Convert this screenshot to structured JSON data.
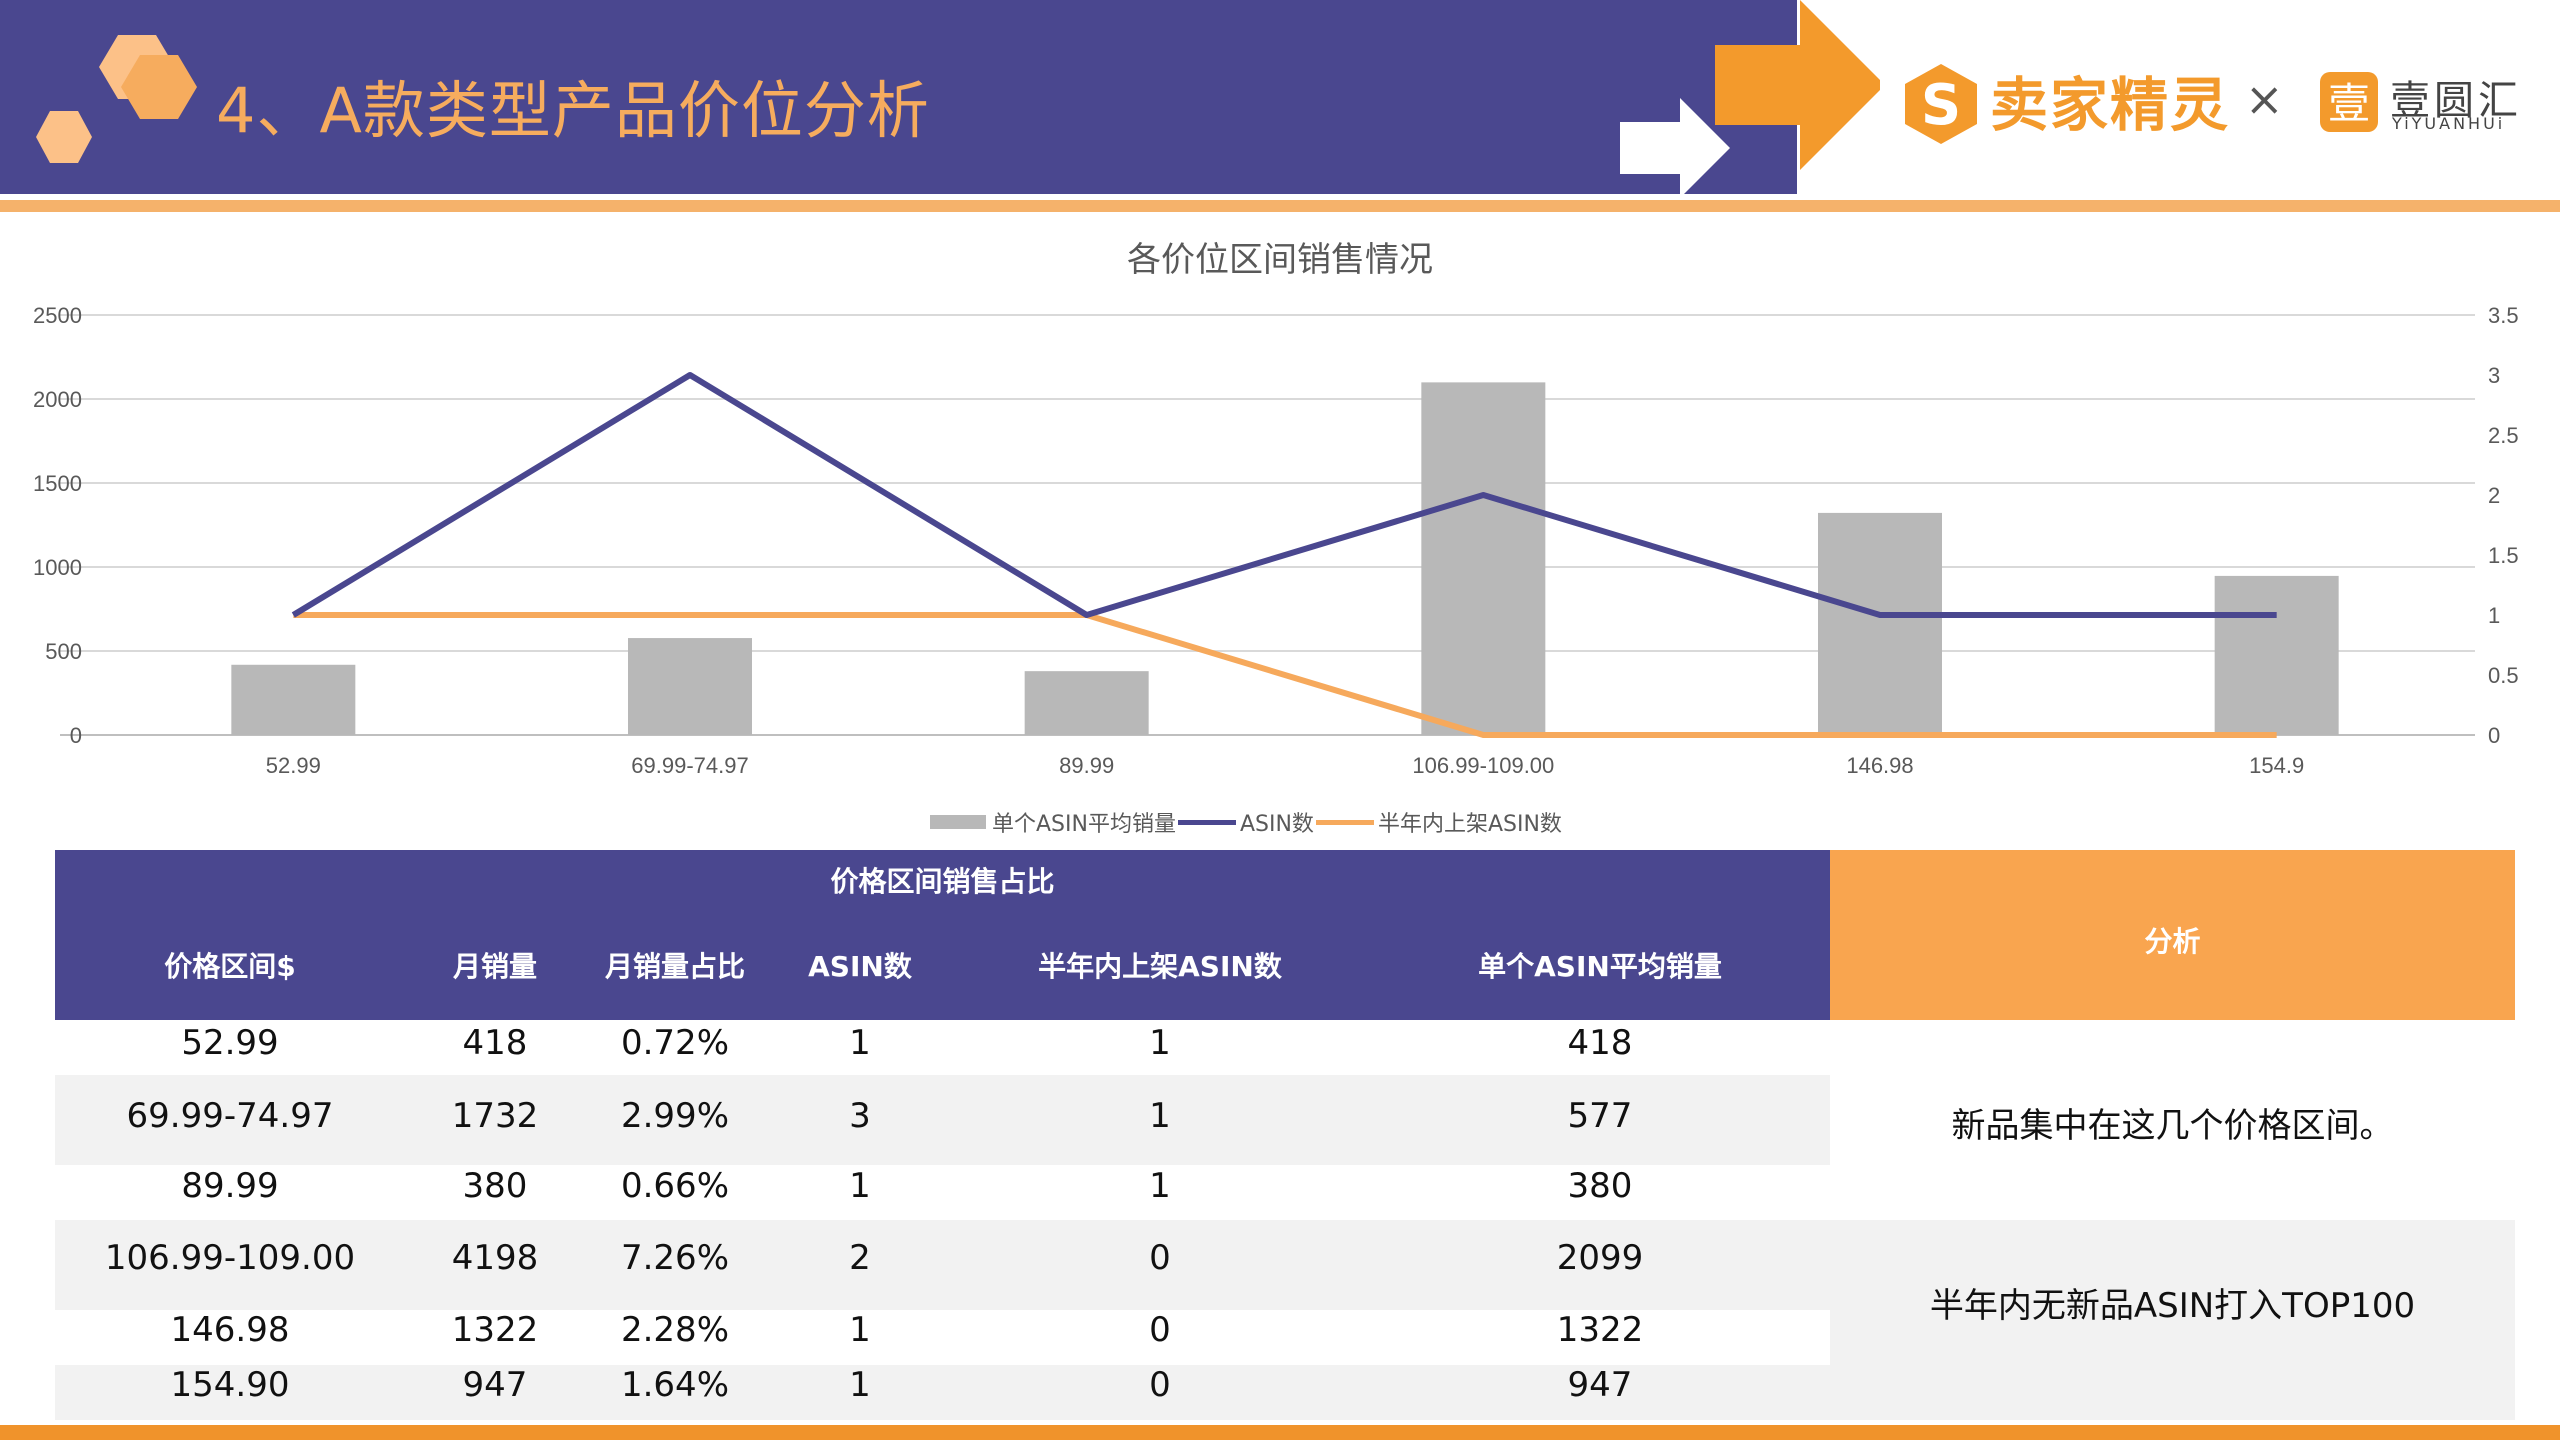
{
  "header": {
    "title": "4、A款类型产品价位分析",
    "brand_primary": "卖家精灵",
    "brand_separator": "×",
    "brand_secondary": "壹圆汇",
    "brand_secondary_sub": "YiYUANHUi",
    "colors": {
      "band": "#4a478f",
      "accent": "#f6ac5e",
      "arrow": "#f39a2c"
    }
  },
  "chart_data": {
    "type": "bar",
    "title": "各价位区间销售情况",
    "categories": [
      "52.99",
      "69.99-74.97",
      "89.99",
      "106.99-109.00",
      "146.98",
      "154.9"
    ],
    "series": [
      {
        "name": "单个ASIN平均销量",
        "type": "bar",
        "axis": "left",
        "color": "#b8b8b8",
        "values": [
          418,
          577,
          380,
          2099,
          1322,
          947
        ]
      },
      {
        "name": "ASIN数",
        "type": "line",
        "axis": "right",
        "color": "#4a478f",
        "values": [
          1,
          3,
          1,
          2,
          1,
          1
        ]
      },
      {
        "name": "半年内上架ASIN数",
        "type": "line",
        "axis": "right",
        "color": "#f6a95c",
        "values": [
          1,
          1,
          1,
          0,
          0,
          0
        ]
      }
    ],
    "y_left_ticks": [
      "0",
      "500",
      "1000",
      "1500",
      "2000",
      "2500"
    ],
    "y_left_range": [
      0,
      2500
    ],
    "y_right_ticks": [
      "0",
      "0.5",
      "1",
      "1.5",
      "2",
      "2.5",
      "3",
      "3.5"
    ],
    "y_right_range": [
      0,
      3.5
    ],
    "grid": true,
    "legend_position": "bottom"
  },
  "table": {
    "group_title": "价格区间销售占比",
    "columns": [
      "价格区间$",
      "月销量",
      "月销量占比",
      "ASIN数",
      "半年内上架ASIN数",
      "单个ASIN平均销量"
    ],
    "rows": [
      [
        "52.99",
        "418",
        "0.72%",
        "1",
        "1",
        "418"
      ],
      [
        "69.99-74.97",
        "1732",
        "2.99%",
        "3",
        "1",
        "577"
      ],
      [
        "89.99",
        "380",
        "0.66%",
        "1",
        "1",
        "380"
      ],
      [
        "106.99-109.00",
        "4198",
        "7.26%",
        "2",
        "0",
        "2099"
      ],
      [
        "146.98",
        "1322",
        "2.28%",
        "1",
        "0",
        "1322"
      ],
      [
        "154.90",
        "947",
        "1.64%",
        "1",
        "0",
        "947"
      ]
    ],
    "analysis_title": "分析",
    "analysis_notes": [
      "新品集中在这几个价格区间。",
      "半年内无新品ASIN打入TOP100"
    ]
  }
}
